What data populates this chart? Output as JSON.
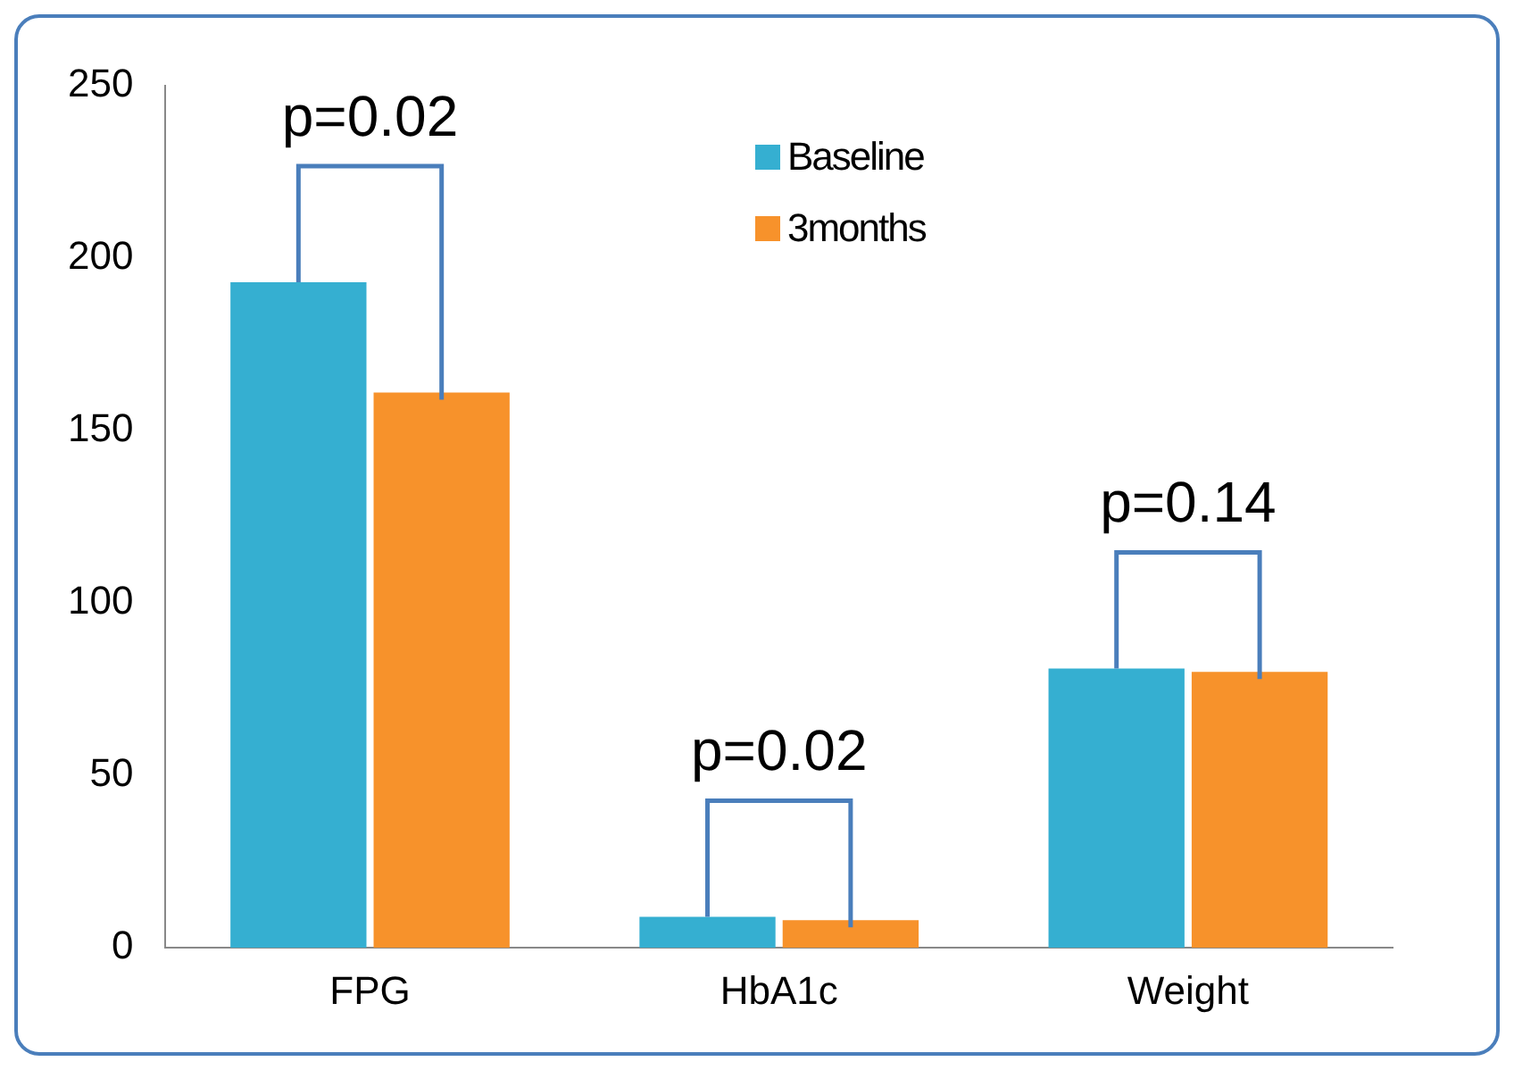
{
  "chart_data": {
    "type": "bar",
    "categories": [
      "FPG",
      "HbA1c",
      "Weight"
    ],
    "series": [
      {
        "name": "Baseline",
        "color": "#35afd1",
        "values": [
          193,
          9,
          81
        ]
      },
      {
        "name": "3months",
        "color": "#f7922b",
        "values": [
          161,
          8,
          80
        ]
      }
    ],
    "ylim": [
      0,
      250
    ],
    "yticks": [
      0,
      50,
      100,
      150,
      200,
      250
    ],
    "grid": false,
    "legend": "top",
    "annotations": [
      "p=0.02",
      "p=0.02",
      "p=0.14"
    ]
  }
}
